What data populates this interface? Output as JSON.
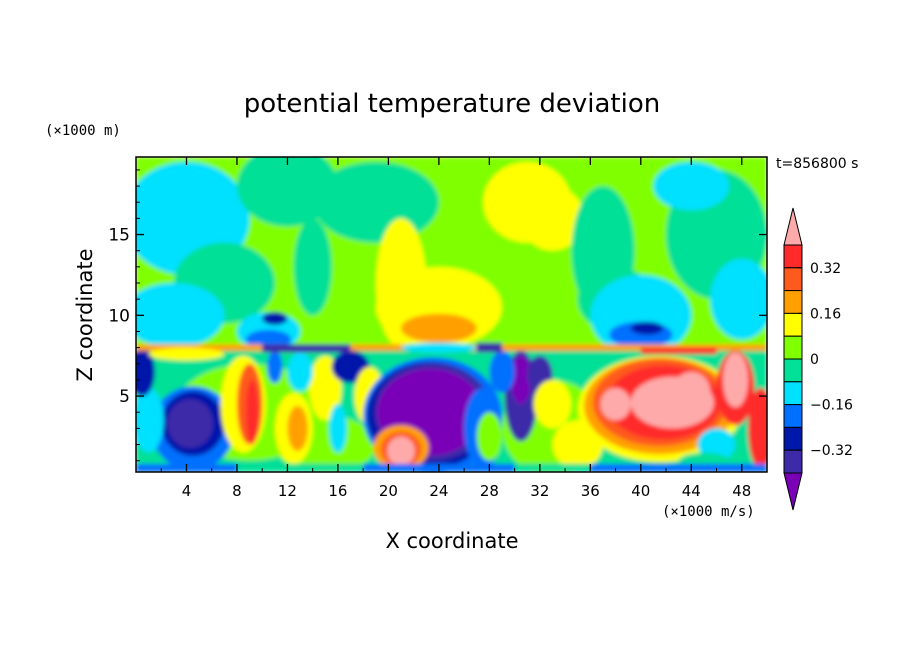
{
  "chart_data": {
    "type": "heatmap",
    "title": "potential temperature deviation",
    "xlabel": "X coordinate",
    "ylabel": "Z coordinate",
    "x_unit": "(×1000 m/s)",
    "y_unit": "(×1000 m)",
    "time_label": "t=856800 s",
    "xlim": [
      0,
      50
    ],
    "ylim": [
      0.3,
      19.8
    ],
    "x_ticks": [
      "4",
      "8",
      "12",
      "16",
      "20",
      "24",
      "28",
      "32",
      "36",
      "40",
      "44",
      "48"
    ],
    "y_ticks": [
      "5",
      "10",
      "15"
    ],
    "colorbar": {
      "levels": [
        -0.4,
        -0.32,
        -0.24,
        -0.16,
        -0.08,
        0,
        0.08,
        0.16,
        0.24,
        0.32,
        0.4
      ],
      "tick_labels": [
        "0.32",
        "0.16",
        "0",
        "−0.16",
        "−0.32"
      ],
      "colors": [
        "#7a00b8",
        "#3c2aa8",
        "#0018aa",
        "#0070ff",
        "#00e0ff",
        "#00e096",
        "#80ff00",
        "#ffff00",
        "#ffa000",
        "#ff5a1e",
        "#ff2a2a",
        "#ffaaaa"
      ]
    },
    "regions": [
      {
        "zone": "upper-left",
        "x": [
          0,
          12
        ],
        "z": [
          8,
          19.8
        ],
        "level": "cyan/green"
      },
      {
        "zone": "upper-center",
        "x": [
          16,
          40
        ],
        "z": [
          8,
          19.8
        ],
        "level": "green/yellow"
      },
      {
        "zone": "upper-right",
        "x": [
          40,
          50
        ],
        "z": [
          8,
          19.8
        ],
        "level": "green/cyan"
      },
      {
        "zone": "interface",
        "z": 8,
        "level": "-0.40 to 0.32"
      },
      {
        "zone": "cold-blob",
        "x": [
          2.5,
          6
        ],
        "z": [
          0.5,
          5
        ],
        "level": "-0.32"
      },
      {
        "zone": "cold-blob",
        "x": [
          19,
          28
        ],
        "z": [
          0.8,
          6.5
        ],
        "level": "-0.40"
      },
      {
        "zone": "warm-blob",
        "x": [
          36,
          46
        ],
        "z": [
          1.5,
          7
        ],
        "level": "0.32"
      }
    ]
  }
}
